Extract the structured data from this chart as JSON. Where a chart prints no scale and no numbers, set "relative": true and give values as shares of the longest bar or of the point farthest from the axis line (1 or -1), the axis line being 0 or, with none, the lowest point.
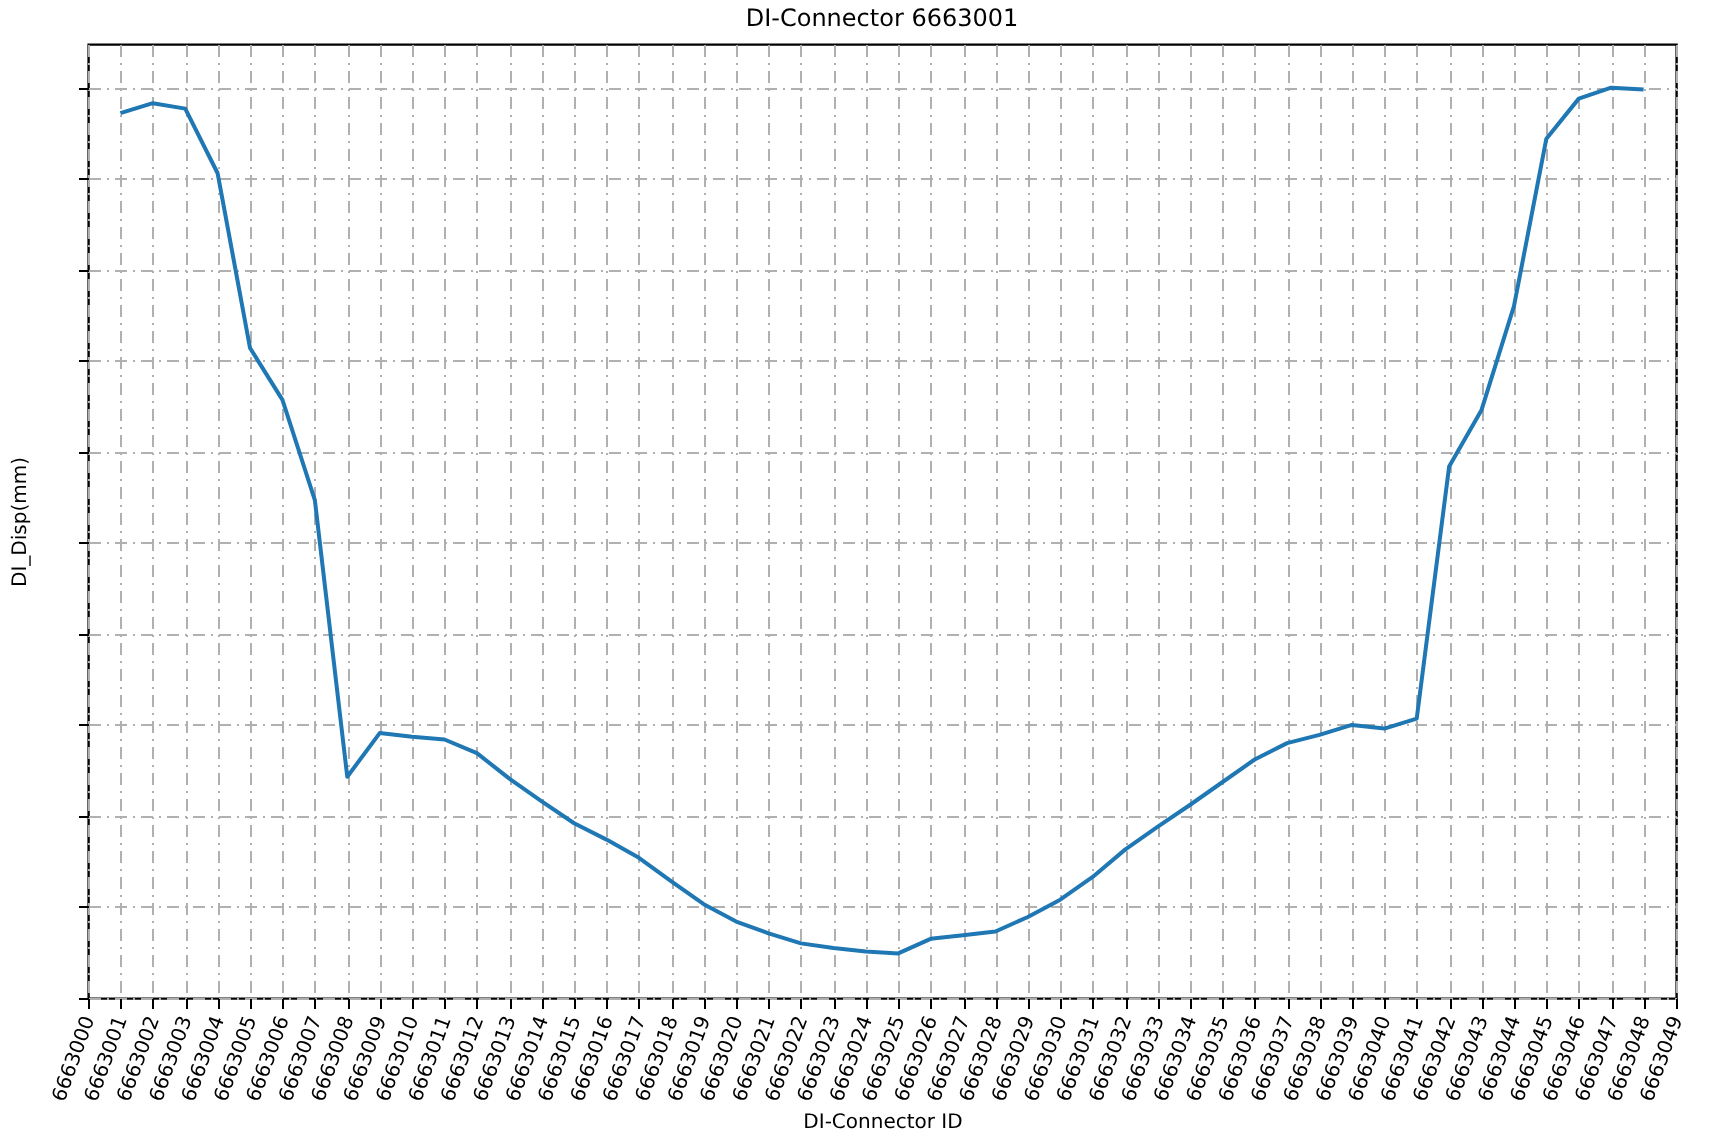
{
  "chart_data": {
    "type": "line",
    "title": "DI-Connector 6663001",
    "xlabel": "DI-Connector ID",
    "ylabel": "DI_Disp(mm)",
    "relative": true,
    "grid": true,
    "marker": "none",
    "line_style": "solid",
    "xlim": [
      6663000,
      6663049
    ],
    "xticks": [
      6663000,
      6663001,
      6663002,
      6663003,
      6663004,
      6663005,
      6663006,
      6663007,
      6663008,
      6663009,
      6663010,
      6663011,
      6663012,
      6663013,
      6663014,
      6663015,
      6663016,
      6663017,
      6663018,
      6663019,
      6663020,
      6663021,
      6663022,
      6663023,
      6663024,
      6663025,
      6663026,
      6663027,
      6663028,
      6663029,
      6663030,
      6663031,
      6663032,
      6663033,
      6663034,
      6663035,
      6663036,
      6663037,
      6663038,
      6663039,
      6663040,
      6663041,
      6663042,
      6663043,
      6663044,
      6663045,
      6663046,
      6663047,
      6663048,
      6663049
    ],
    "x": [
      6663001,
      6663002,
      6663003,
      6663004,
      6663005,
      6663006,
      6663007,
      6663008,
      6663009,
      6663010,
      6663011,
      6663012,
      6663013,
      6663014,
      6663015,
      6663016,
      6663017,
      6663018,
      6663019,
      6663020,
      6663021,
      6663022,
      6663023,
      6663024,
      6663025,
      6663026,
      6663027,
      6663028,
      6663029,
      6663030,
      6663031,
      6663032,
      6663033,
      6663034,
      6663035,
      6663036,
      6663037,
      6663038,
      6663039,
      6663040,
      6663041,
      6663042,
      6663043,
      6663044,
      6663045,
      6663046,
      6663047,
      6663048
    ],
    "series": [
      {
        "color": "#1f77b4",
        "values": [
          0.972,
          0.983,
          0.977,
          0.906,
          0.714,
          0.657,
          0.547,
          0.243,
          0.291,
          0.287,
          0.284,
          0.269,
          0.241,
          0.216,
          0.192,
          0.174,
          0.154,
          0.128,
          0.103,
          0.084,
          0.071,
          0.06,
          0.055,
          0.051,
          0.049,
          0.065,
          0.069,
          0.073,
          0.089,
          0.108,
          0.133,
          0.163,
          0.188,
          0.212,
          0.237,
          0.262,
          0.28,
          0.289,
          0.3,
          0.296,
          0.307,
          0.584,
          0.646,
          0.76,
          0.944,
          0.988,
          1,
          0.998
        ]
      }
    ]
  }
}
